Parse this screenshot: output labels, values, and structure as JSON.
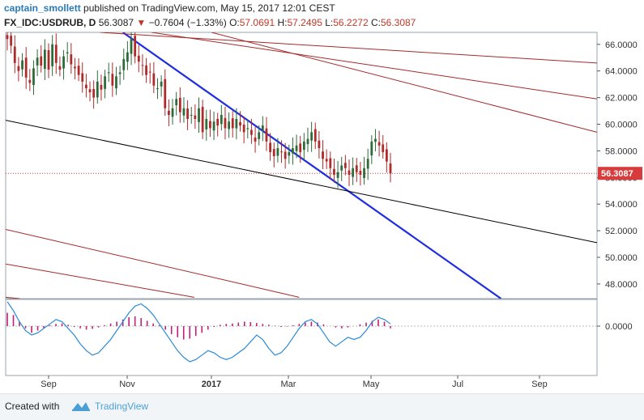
{
  "header": {
    "author": "captain_smollett",
    "published_text": "published on TradingView.com, May 15, 2017 12:01 CEST"
  },
  "legend": {
    "symbol": "FX_IDC:USDRUB, D",
    "last": "56.3087",
    "change": "−0.7604 (−1.33%)",
    "open_label": "O:",
    "open": "57.0691",
    "high_label": "H:",
    "high": "57.2495",
    "low_label": "L:",
    "low": "56.2272",
    "close_label": "C:",
    "close": "56.3087"
  },
  "footer": {
    "created_with": "Created with",
    "brand": "TradingView"
  },
  "colors": {
    "up_candle": "#2e6b3a",
    "down_candle": "#b02a2a",
    "trendline": "#1e2ee0",
    "channel_red": "#a52a2a",
    "channel_black": "#000000",
    "oscillator_line": "#2a8ad8",
    "histogram": "#c0207a",
    "price_marker": "#d83b3b"
  },
  "chart_data": [
    {
      "type": "candlestick",
      "title": "",
      "ylim": [
        46.9,
        66.9
      ],
      "y_ticks": [
        48,
        50,
        52,
        54,
        56,
        58,
        60,
        62,
        64,
        66
      ],
      "y_tick_labels": [
        "48.0000",
        "50.0000",
        "52.0000",
        "54.0000",
        "56.0000",
        "58.0000",
        "60.0000",
        "62.0000",
        "64.0000",
        "66.0000"
      ],
      "x_axis_labels": [
        "Sep",
        "Nov",
        "2017",
        "Mar",
        "May",
        "Jul",
        "Sep"
      ],
      "last_price_label": "56.3087",
      "last_price": 56.3087,
      "close_series": [
        66.4,
        65.9,
        64.6,
        64.0,
        64.8,
        63.5,
        63.1,
        64.2,
        65.0,
        64.4,
        65.6,
        64.1,
        66.0,
        64.6,
        64.1,
        65.1,
        65.4,
        64.5,
        64.2,
        63.7,
        63.2,
        62.7,
        62.4,
        62.0,
        63.2,
        62.6,
        63.6,
        63.9,
        62.9,
        63.6,
        63.9,
        64.9,
        65.4,
        66.4,
        65.1,
        64.7,
        64.4,
        63.7,
        63.9,
        62.9,
        62.7,
        63.2,
        61.2,
        60.7,
        61.2,
        61.9,
        60.9,
        61.2,
        60.4,
        60.7,
        60.4,
        61.2,
        59.4,
        60.4,
        59.7,
        60.2,
        59.9,
        60.7,
        59.7,
        60.2,
        59.7,
        60.4,
        59.9,
        59.4,
        59.7,
        59.2,
        58.7,
        59.4,
        59.9,
        58.7,
        57.9,
        57.6,
        58.2,
        57.9,
        57.4,
        57.9,
        58.2,
        58.4,
        57.9,
        58.7,
        58.9,
        59.4,
        58.7,
        58.2,
        57.4,
        57.2,
        56.7,
        56.2,
        56.4,
        56.9,
        56.7,
        56.2,
        56.7,
        56.4,
        56.2,
        56.7,
        57.4,
        58.7,
        58.9,
        58.4,
        57.9,
        57.2,
        56.3087
      ],
      "series": [
        {
          "type": "line",
          "kind": "downtrend",
          "points": [
            [
              "2016-10-31",
              66.9
            ],
            [
              "2017-07-28",
              46.9
            ]
          ]
        },
        {
          "type": "line",
          "kind": "channel-black",
          "points": [
            [
              "2016-08-10",
              60.3
            ],
            [
              "2017-10-05",
              51.1
            ]
          ]
        },
        {
          "type": "line",
          "kind": "channel-red-1",
          "points": [
            [
              "2016-10-15",
              66.9
            ],
            [
              "2017-10-05",
              64.6
            ]
          ]
        },
        {
          "type": "line",
          "kind": "channel-red-2",
          "points": [
            [
              "2016-11-20",
              66.9
            ],
            [
              "2017-10-05",
              61.9
            ]
          ]
        },
        {
          "type": "line",
          "kind": "channel-red-3",
          "points": [
            [
              "2017-01-01",
              66.9
            ],
            [
              "2017-10-05",
              59.4
            ]
          ]
        },
        {
          "type": "line",
          "kind": "channel-red-4",
          "points": [
            [
              "2016-08-10",
              52.1
            ],
            [
              "2017-03-05",
              47.0
            ]
          ]
        },
        {
          "type": "line",
          "kind": "channel-red-5",
          "points": [
            [
              "2016-08-10",
              49.5
            ],
            [
              "2016-12-20",
              47.0
            ]
          ]
        },
        {
          "type": "line",
          "kind": "channel-red-6",
          "points": [
            [
              "2016-08-10",
              47.0
            ],
            [
              "2016-08-20",
              46.9
            ]
          ]
        }
      ]
    },
    {
      "type": "area",
      "title": "",
      "y_ticks": [
        0
      ],
      "y_tick_labels": [
        "0.0000"
      ],
      "ylim": [
        -1.0,
        0.6
      ],
      "series": [
        {
          "type": "line",
          "values": [
            0.55,
            0.35,
            0.1,
            -0.1,
            -0.2,
            -0.15,
            -0.05,
            0.05,
            0.15,
            0.1,
            -0.05,
            -0.2,
            -0.4,
            -0.55,
            -0.65,
            -0.6,
            -0.45,
            -0.3,
            -0.1,
            0.1,
            0.3,
            0.45,
            0.5,
            0.4,
            0.25,
            0.05,
            -0.15,
            -0.35,
            -0.55,
            -0.7,
            -0.8,
            -0.75,
            -0.65,
            -0.55,
            -0.6,
            -0.7,
            -0.75,
            -0.7,
            -0.6,
            -0.5,
            -0.35,
            -0.2,
            -0.3,
            -0.5,
            -0.65,
            -0.6,
            -0.45,
            -0.25,
            -0.05,
            0.1,
            0.15,
            0.05,
            -0.15,
            -0.35,
            -0.45,
            -0.35,
            -0.25,
            -0.3,
            -0.25,
            -0.1,
            0.1,
            0.2,
            0.15,
            0.05
          ]
        },
        {
          "type": "bar",
          "values": [
            0.3,
            0.25,
            0.1,
            -0.05,
            -0.15,
            -0.1,
            -0.05,
            0.02,
            0.05,
            0.06,
            0.03,
            -0.02,
            -0.05,
            -0.08,
            -0.06,
            -0.03,
            0.02,
            0.06,
            0.1,
            0.15,
            0.2,
            0.22,
            0.18,
            0.12,
            0.06,
            0.02,
            -0.08,
            -0.18,
            -0.25,
            -0.3,
            -0.28,
            -0.22,
            -0.15,
            -0.08,
            -0.02,
            0.03,
            0.05,
            0.06,
            0.08,
            0.1,
            0.09,
            0.07,
            0.05,
            0.03,
            0.01,
            -0.02,
            -0.01,
            0.02,
            0.05,
            0.08,
            0.1,
            0.08,
            0.04,
            0.0,
            -0.03,
            -0.05,
            -0.03,
            0.0,
            0.04,
            0.08,
            0.12,
            0.15,
            0.1,
            -0.05
          ]
        }
      ]
    }
  ]
}
